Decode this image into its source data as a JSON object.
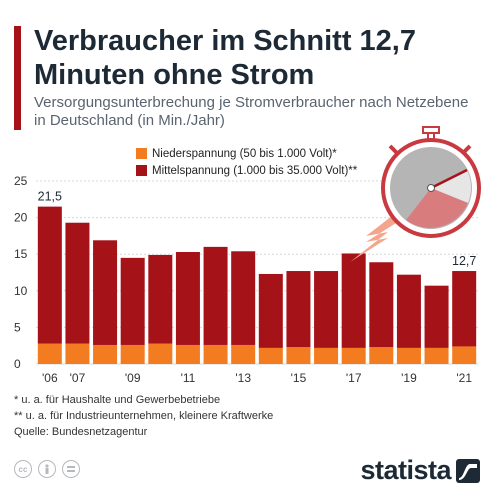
{
  "header": {
    "title": "Verbraucher im Schnitt 12,7 Minuten ohne Strom",
    "subtitle": "Versorgungsunterbrechung je Stromverbraucher nach Netzebene in Deutschland (in Min./Jahr)"
  },
  "legend": {
    "items": [
      {
        "label": "Niederspannung (50 bis 1.000 Volt)*",
        "color": "#f47c20"
      },
      {
        "label": "Mittelspannung (1.000 bis 35.000 Volt)**",
        "color": "#a51218"
      }
    ]
  },
  "chart_data": {
    "type": "bar",
    "stacked": true,
    "categories": [
      "2006",
      "2007",
      "2008",
      "2009",
      "2010",
      "2011",
      "2012",
      "2013",
      "2014",
      "2015",
      "2016",
      "2017",
      "2018",
      "2019",
      "2020",
      "2021"
    ],
    "x_tick_labels": [
      "'06",
      "'07",
      "",
      "'09",
      "",
      "'11",
      "",
      "'13",
      "",
      "'15",
      "",
      "'17",
      "",
      "'19",
      "",
      "'21"
    ],
    "series": [
      {
        "name": "Niederspannung (50 bis 1.000 Volt)*",
        "values": [
          2.8,
          2.8,
          2.6,
          2.6,
          2.8,
          2.6,
          2.6,
          2.6,
          2.2,
          2.3,
          2.2,
          2.2,
          2.3,
          2.2,
          2.2,
          2.4
        ]
      },
      {
        "name": "Mittelspannung (1.000 bis 35.000 Volt)**",
        "values": [
          18.7,
          16.5,
          14.3,
          11.9,
          12.1,
          12.7,
          13.4,
          12.8,
          10.1,
          10.4,
          10.5,
          12.9,
          11.6,
          10.0,
          8.5,
          10.3
        ]
      }
    ],
    "totals": [
      21.5,
      19.3,
      16.9,
      14.5,
      14.9,
      15.3,
      16.0,
      15.4,
      12.3,
      12.7,
      12.7,
      15.1,
      13.9,
      12.2,
      10.7,
      12.7
    ],
    "data_labels": [
      {
        "index": 0,
        "text": "21,5"
      },
      {
        "index": 15,
        "text": "12,7"
      }
    ],
    "y_ticks": [
      0,
      5,
      10,
      15,
      20,
      25
    ],
    "ylim": [
      0,
      25
    ],
    "grid": true,
    "legend_position": "top"
  },
  "footnotes": [
    "*   u. a. für Haushalte und Gewerbebetriebe",
    "** u. a. für Industrieunternehmen, kleinere Kraftwerke",
    "Quelle: Bundesnetzagentur"
  ],
  "brand": {
    "name": "statista"
  },
  "icons": [
    "cc-icon",
    "person-icon",
    "equals-icon",
    "stopwatch-icon",
    "statista-logo-icon"
  ]
}
